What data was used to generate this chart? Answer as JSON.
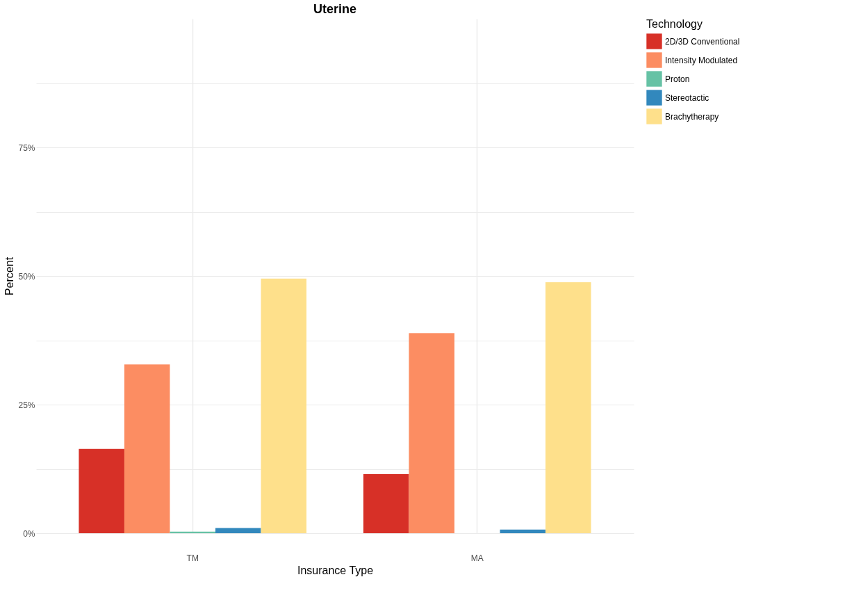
{
  "chart_data": {
    "type": "bar",
    "title": "Uterine",
    "xlabel": "Insurance Type",
    "ylabel": "Percent",
    "legend_title": "Technology",
    "legend": "right",
    "grid": true,
    "categories": [
      "TM",
      "MA"
    ],
    "series": [
      {
        "name": "2D/3D Conventional",
        "color": "#d73027",
        "values": [
          16.4,
          11.5
        ]
      },
      {
        "name": "Intensity Modulated",
        "color": "#fc8d62",
        "values": [
          32.8,
          38.9
        ]
      },
      {
        "name": "Proton",
        "color": "#66c2a5",
        "values": [
          0.3,
          0
        ]
      },
      {
        "name": "Stereotactic",
        "color": "#3288bd",
        "values": [
          1.0,
          0.7
        ]
      },
      {
        "name": "Brachytherapy",
        "color": "#fee08b",
        "values": [
          49.5,
          48.8
        ]
      }
    ],
    "ylim": [
      0,
      100
    ],
    "yticks": [
      {
        "value": 0,
        "label": "0%"
      },
      {
        "value": 12.5,
        "label": null
      },
      {
        "value": 25,
        "label": "25%"
      },
      {
        "value": 37.5,
        "label": null
      },
      {
        "value": 50,
        "label": "50%"
      },
      {
        "value": 62.5,
        "label": null
      },
      {
        "value": 75,
        "label": "75%"
      },
      {
        "value": 87.5,
        "label": null
      }
    ]
  }
}
